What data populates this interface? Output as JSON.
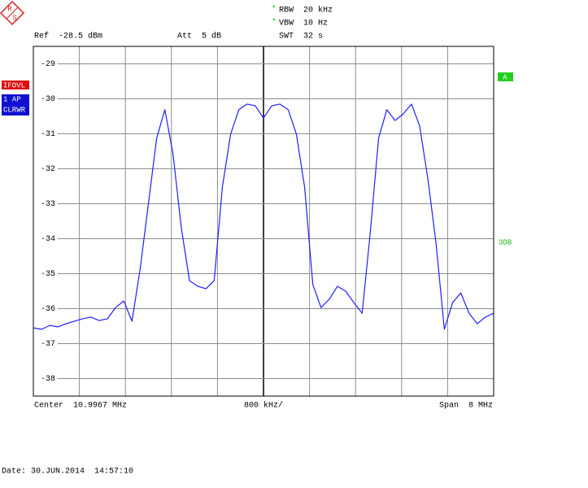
{
  "chart_data": {
    "type": "line",
    "logo": [
      "R",
      "S"
    ],
    "coupled_marker": "*",
    "ref_label": "Ref  -28.5 dBm",
    "att_label": "Att  5 dB",
    "rbw_label": "RBW  20 kHz",
    "vbw_label": "VBW  10 Hz",
    "swt_label": "SWT  32 s",
    "center_label": "Center  10.9967 MHz",
    "div_label": "800 kHz/",
    "span_label": "Span  8 MHz",
    "date_label": "Date: 30.JUN.2014  14:57:10",
    "trace_flags": [
      "IFOVL",
      "1 AP",
      "CLRWR"
    ],
    "limit_flag": "A",
    "side_label": "3DB",
    "ylim": [
      -38.5,
      -28.5
    ],
    "yticks": [
      -29,
      -30,
      -31,
      -32,
      -33,
      -34,
      -35,
      -36,
      -37,
      -38
    ],
    "grid": true,
    "series": [
      {
        "color": "#1f1fff",
        "values": [
          -36.55,
          -36.59,
          -36.48,
          -36.52,
          -36.43,
          -36.36,
          -36.29,
          -36.24,
          -36.34,
          -36.29,
          -35.97,
          -35.78,
          -36.36,
          -34.85,
          -33.0,
          -31.13,
          -30.31,
          -31.59,
          -33.69,
          -35.2,
          -35.36,
          -35.43,
          -35.2,
          -32.52,
          -31.01,
          -30.31,
          -30.15,
          -30.2,
          -30.55,
          -30.2,
          -30.15,
          -30.31,
          -31.01,
          -32.52,
          -35.31,
          -35.97,
          -35.73,
          -35.36,
          -35.5,
          -35.83,
          -36.13,
          -33.8,
          -31.13,
          -30.31,
          -30.62,
          -30.43,
          -30.15,
          -30.78,
          -32.29,
          -34.15,
          -36.59,
          -35.83,
          -35.55,
          -36.13,
          -36.43,
          -36.24,
          -36.13
        ]
      }
    ]
  }
}
